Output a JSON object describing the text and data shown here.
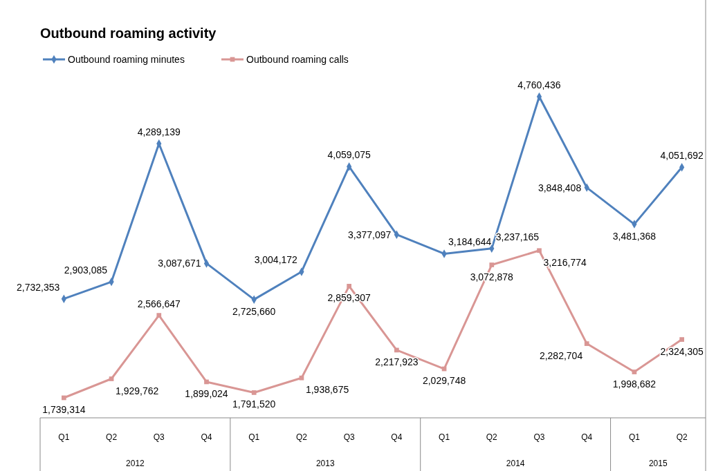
{
  "chart_data": {
    "type": "line",
    "title": "Outbound roaming activity",
    "categories": [
      "Q1",
      "Q2",
      "Q3",
      "Q4",
      "Q1",
      "Q2",
      "Q3",
      "Q4",
      "Q1",
      "Q2",
      "Q3",
      "Q4",
      "Q1",
      "Q2"
    ],
    "annotations": [
      "2012",
      "2013",
      "2014",
      "2015"
    ],
    "series": [
      {
        "name": "Outbound roaming minutes",
        "color": "#4f81bd",
        "marker": "diamond",
        "values": [
          2732353,
          2903085,
          4289139,
          3087671,
          2725660,
          3004172,
          4059075,
          3377097,
          3184644,
          3237165,
          4760436,
          3848408,
          3481368,
          4051692
        ],
        "value_labels": [
          "2,732,353",
          "2,903,085",
          "4,289,139",
          "3,087,671",
          "2,725,660",
          "3,004,172",
          "4,059,075",
          "3,377,097",
          "3,184,644",
          "3,237,165",
          "4,760,436",
          "3,848,408",
          "3,481,368",
          "4,051,692"
        ]
      },
      {
        "name": "Outbound roaming calls",
        "color": "#d99694",
        "marker": "square",
        "values": [
          1739314,
          1929762,
          2566647,
          1899024,
          1791520,
          1938675,
          2859307,
          2217923,
          2029748,
          3072878,
          3216774,
          2282704,
          1998682,
          2324305
        ],
        "value_labels": [
          "1,739,314",
          "1,929,762",
          "2,566,647",
          "1,899,024",
          "1,791,520",
          "1,938,675",
          "2,859,307",
          "2,217,923",
          "2,029,748",
          "3,072,878",
          "3,216,774",
          "2,282,704",
          "1,998,682",
          "2,324,305"
        ]
      }
    ],
    "legend": "top left"
  }
}
